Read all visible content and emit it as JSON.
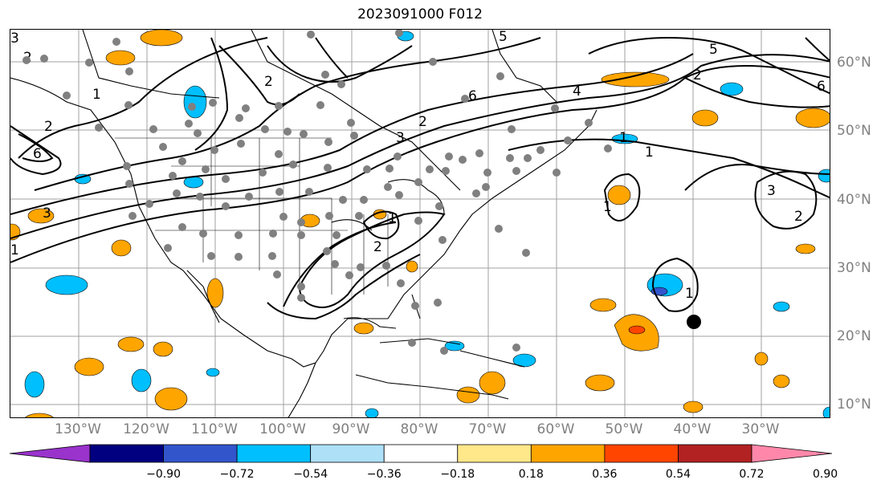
{
  "title": "2023091000 F012",
  "lat_labels": [
    "60°N",
    "50°N",
    "40°N",
    "30°N",
    "20°N",
    "10°N"
  ],
  "lon_labels": [
    "130°W",
    "120°W",
    "110°W",
    "100°W",
    "90°W",
    "80°W",
    "70°W",
    "60°W",
    "50°W",
    "40°W",
    "30°W"
  ],
  "colorbar": {
    "ticks": [
      "−0.90",
      "−0.72",
      "−0.54",
      "−0.36",
      "−0.18",
      "0.18",
      "0.36",
      "0.54",
      "0.72",
      "0.90"
    ],
    "colors": [
      "#9933cc",
      "#000080",
      "#3355cc",
      "#00bfff",
      "#aee0f8",
      "#ffffff",
      "#ffe88a",
      "#ffa500",
      "#ff4500",
      "#b22222",
      "#ff88aa"
    ]
  },
  "contour_labels": [
    "3",
    "2",
    "1",
    "2",
    "6",
    "3",
    "1",
    "2",
    "4",
    "5",
    "4",
    "6",
    "5",
    "3",
    "2",
    "1",
    "1",
    "1",
    "2",
    "3",
    "6",
    "2",
    "5",
    "1",
    "2",
    "3",
    "2",
    "1"
  ]
}
